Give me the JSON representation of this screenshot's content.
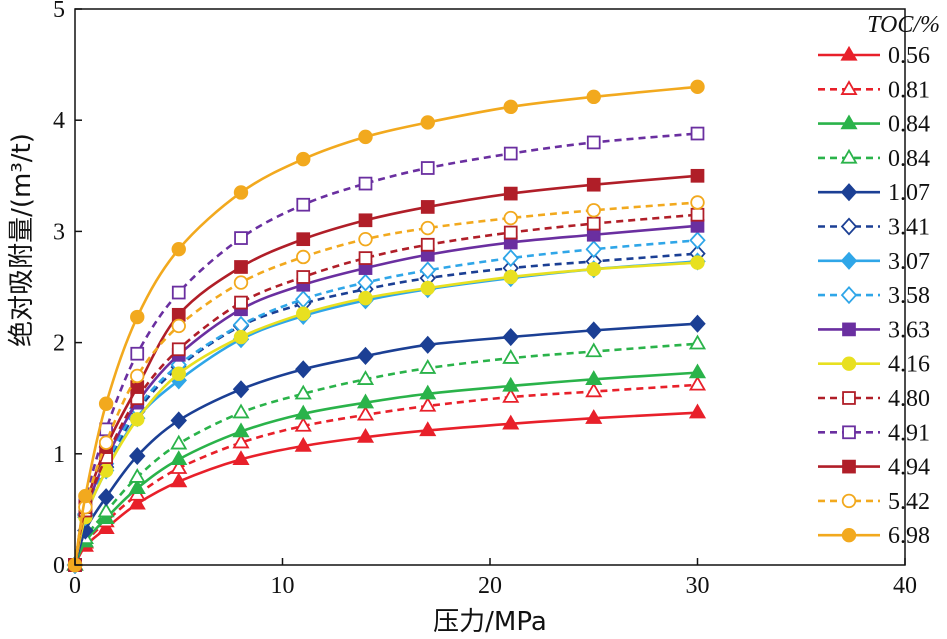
{
  "chart_data": {
    "type": "line",
    "xlabel": "压力/MPa",
    "ylabel": "绝对吸附量/(m³/t)",
    "xlim": [
      0,
      40
    ],
    "ylim": [
      0,
      5
    ],
    "xticks": [
      0,
      10,
      20,
      30,
      40
    ],
    "yticks": [
      0,
      1,
      2,
      3,
      4,
      5
    ],
    "grid": false,
    "legend_title": "TOC/%",
    "legend_position": "right",
    "x": [
      0,
      0.5,
      1.5,
      3,
      5,
      8,
      11,
      14,
      17,
      21,
      25,
      30
    ],
    "series": [
      {
        "name": "0.56",
        "color": "#e8202a",
        "marker": "triangle",
        "filled": true,
        "dashed": false,
        "values": [
          0,
          0.17,
          0.33,
          0.55,
          0.75,
          0.95,
          1.07,
          1.15,
          1.21,
          1.27,
          1.32,
          1.37
        ]
      },
      {
        "name": "0.81",
        "color": "#e8202a",
        "marker": "triangle",
        "filled": false,
        "dashed": true,
        "values": [
          0,
          0.2,
          0.39,
          0.63,
          0.87,
          1.1,
          1.25,
          1.35,
          1.43,
          1.51,
          1.56,
          1.62
        ]
      },
      {
        "name": "0.84",
        "color": "#2ab34a",
        "marker": "triangle",
        "filled": true,
        "dashed": false,
        "values": [
          0,
          0.21,
          0.42,
          0.69,
          0.95,
          1.2,
          1.36,
          1.46,
          1.54,
          1.61,
          1.67,
          1.73
        ]
      },
      {
        "name": "0.84",
        "color": "#2ab34a",
        "marker": "triangle",
        "filled": false,
        "dashed": true,
        "values": [
          0,
          0.24,
          0.48,
          0.79,
          1.09,
          1.37,
          1.54,
          1.67,
          1.77,
          1.86,
          1.92,
          1.99
        ]
      },
      {
        "name": "1.07",
        "color": "#1b3f94",
        "marker": "diamond",
        "filled": true,
        "dashed": false,
        "values": [
          0,
          0.31,
          0.61,
          0.98,
          1.3,
          1.58,
          1.76,
          1.88,
          1.98,
          2.05,
          2.11,
          2.17
        ]
      },
      {
        "name": "3.41",
        "color": "#1b3f94",
        "marker": "diamond",
        "filled": false,
        "dashed": true,
        "values": [
          0,
          0.45,
          0.88,
          1.38,
          1.78,
          2.15,
          2.35,
          2.48,
          2.58,
          2.67,
          2.73,
          2.8
        ]
      },
      {
        "name": "3.07",
        "color": "#2fa6e8",
        "marker": "diamond",
        "filled": true,
        "dashed": false,
        "values": [
          0,
          0.43,
          0.85,
          1.32,
          1.66,
          2.03,
          2.24,
          2.38,
          2.48,
          2.58,
          2.66,
          2.73
        ]
      },
      {
        "name": "3.58",
        "color": "#2fa6e8",
        "marker": "diamond",
        "filled": false,
        "dashed": true,
        "values": [
          0,
          0.46,
          0.91,
          1.41,
          1.8,
          2.16,
          2.39,
          2.54,
          2.65,
          2.76,
          2.84,
          2.92
        ]
      },
      {
        "name": "3.63",
        "color": "#6a2fa0",
        "marker": "square",
        "filled": true,
        "dashed": false,
        "values": [
          0,
          0.47,
          0.95,
          1.46,
          1.89,
          2.3,
          2.52,
          2.67,
          2.79,
          2.9,
          2.97,
          3.05
        ]
      },
      {
        "name": "4.16",
        "color": "#e8e020",
        "marker": "circle",
        "filled": true,
        "dashed": false,
        "values": [
          0,
          0.43,
          0.85,
          1.31,
          1.72,
          2.05,
          2.26,
          2.4,
          2.49,
          2.59,
          2.66,
          2.72
        ]
      },
      {
        "name": "4.80",
        "color": "#b01e28",
        "marker": "square",
        "filled": false,
        "dashed": true,
        "values": [
          0,
          0.49,
          0.97,
          1.5,
          1.94,
          2.36,
          2.59,
          2.76,
          2.88,
          2.99,
          3.07,
          3.15
        ]
      },
      {
        "name": "4.91",
        "color": "#6a2fa0",
        "marker": "square",
        "filled": false,
        "dashed": true,
        "values": [
          0,
          0.58,
          1.22,
          1.9,
          2.45,
          2.94,
          3.24,
          3.43,
          3.57,
          3.7,
          3.8,
          3.88
        ]
      },
      {
        "name": "4.94",
        "color": "#b01e28",
        "marker": "square",
        "filled": true,
        "dashed": false,
        "values": [
          0,
          0.52,
          1.06,
          1.6,
          2.25,
          2.68,
          2.93,
          3.1,
          3.22,
          3.34,
          3.42,
          3.5
        ]
      },
      {
        "name": "5.42",
        "color": "#f2a91e",
        "marker": "circle",
        "filled": false,
        "dashed": true,
        "values": [
          0,
          0.52,
          1.1,
          1.7,
          2.15,
          2.54,
          2.77,
          2.93,
          3.03,
          3.12,
          3.19,
          3.26
        ]
      },
      {
        "name": "6.98",
        "color": "#f2a91e",
        "marker": "circle",
        "filled": true,
        "dashed": false,
        "values": [
          0,
          0.62,
          1.45,
          2.23,
          2.84,
          3.35,
          3.65,
          3.85,
          3.98,
          4.12,
          4.21,
          4.3
        ]
      }
    ]
  }
}
